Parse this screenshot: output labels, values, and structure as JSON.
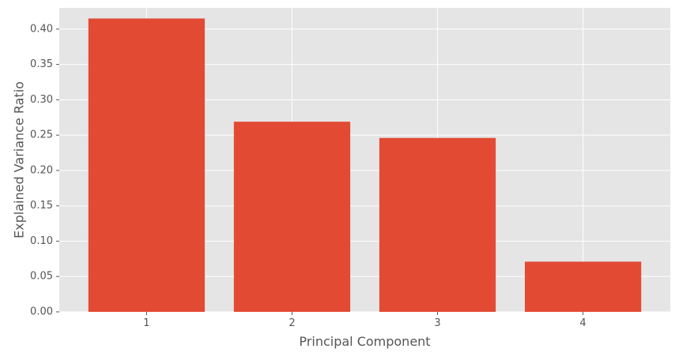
{
  "chart_data": {
    "type": "bar",
    "title": "",
    "xlabel": "Principal Component",
    "ylabel": "Explained Variance Ratio",
    "categories": [
      "1",
      "2",
      "3",
      "4"
    ],
    "values": [
      0.415,
      0.269,
      0.246,
      0.071
    ],
    "ylim": [
      0,
      0.43
    ],
    "yticks": [
      0.0,
      0.05,
      0.1,
      0.15,
      0.2,
      0.25,
      0.3,
      0.35,
      0.4
    ],
    "ytick_labels": [
      "0.00",
      "0.05",
      "0.10",
      "0.15",
      "0.20",
      "0.25",
      "0.30",
      "0.35",
      "0.40"
    ],
    "grid": true,
    "legend": "none",
    "colors": {
      "bar": "#E24A33",
      "plot_background": "#E5E5E5",
      "grid": "#FFFFFF",
      "tick_text": "#555555",
      "label_text": "#555555"
    }
  }
}
